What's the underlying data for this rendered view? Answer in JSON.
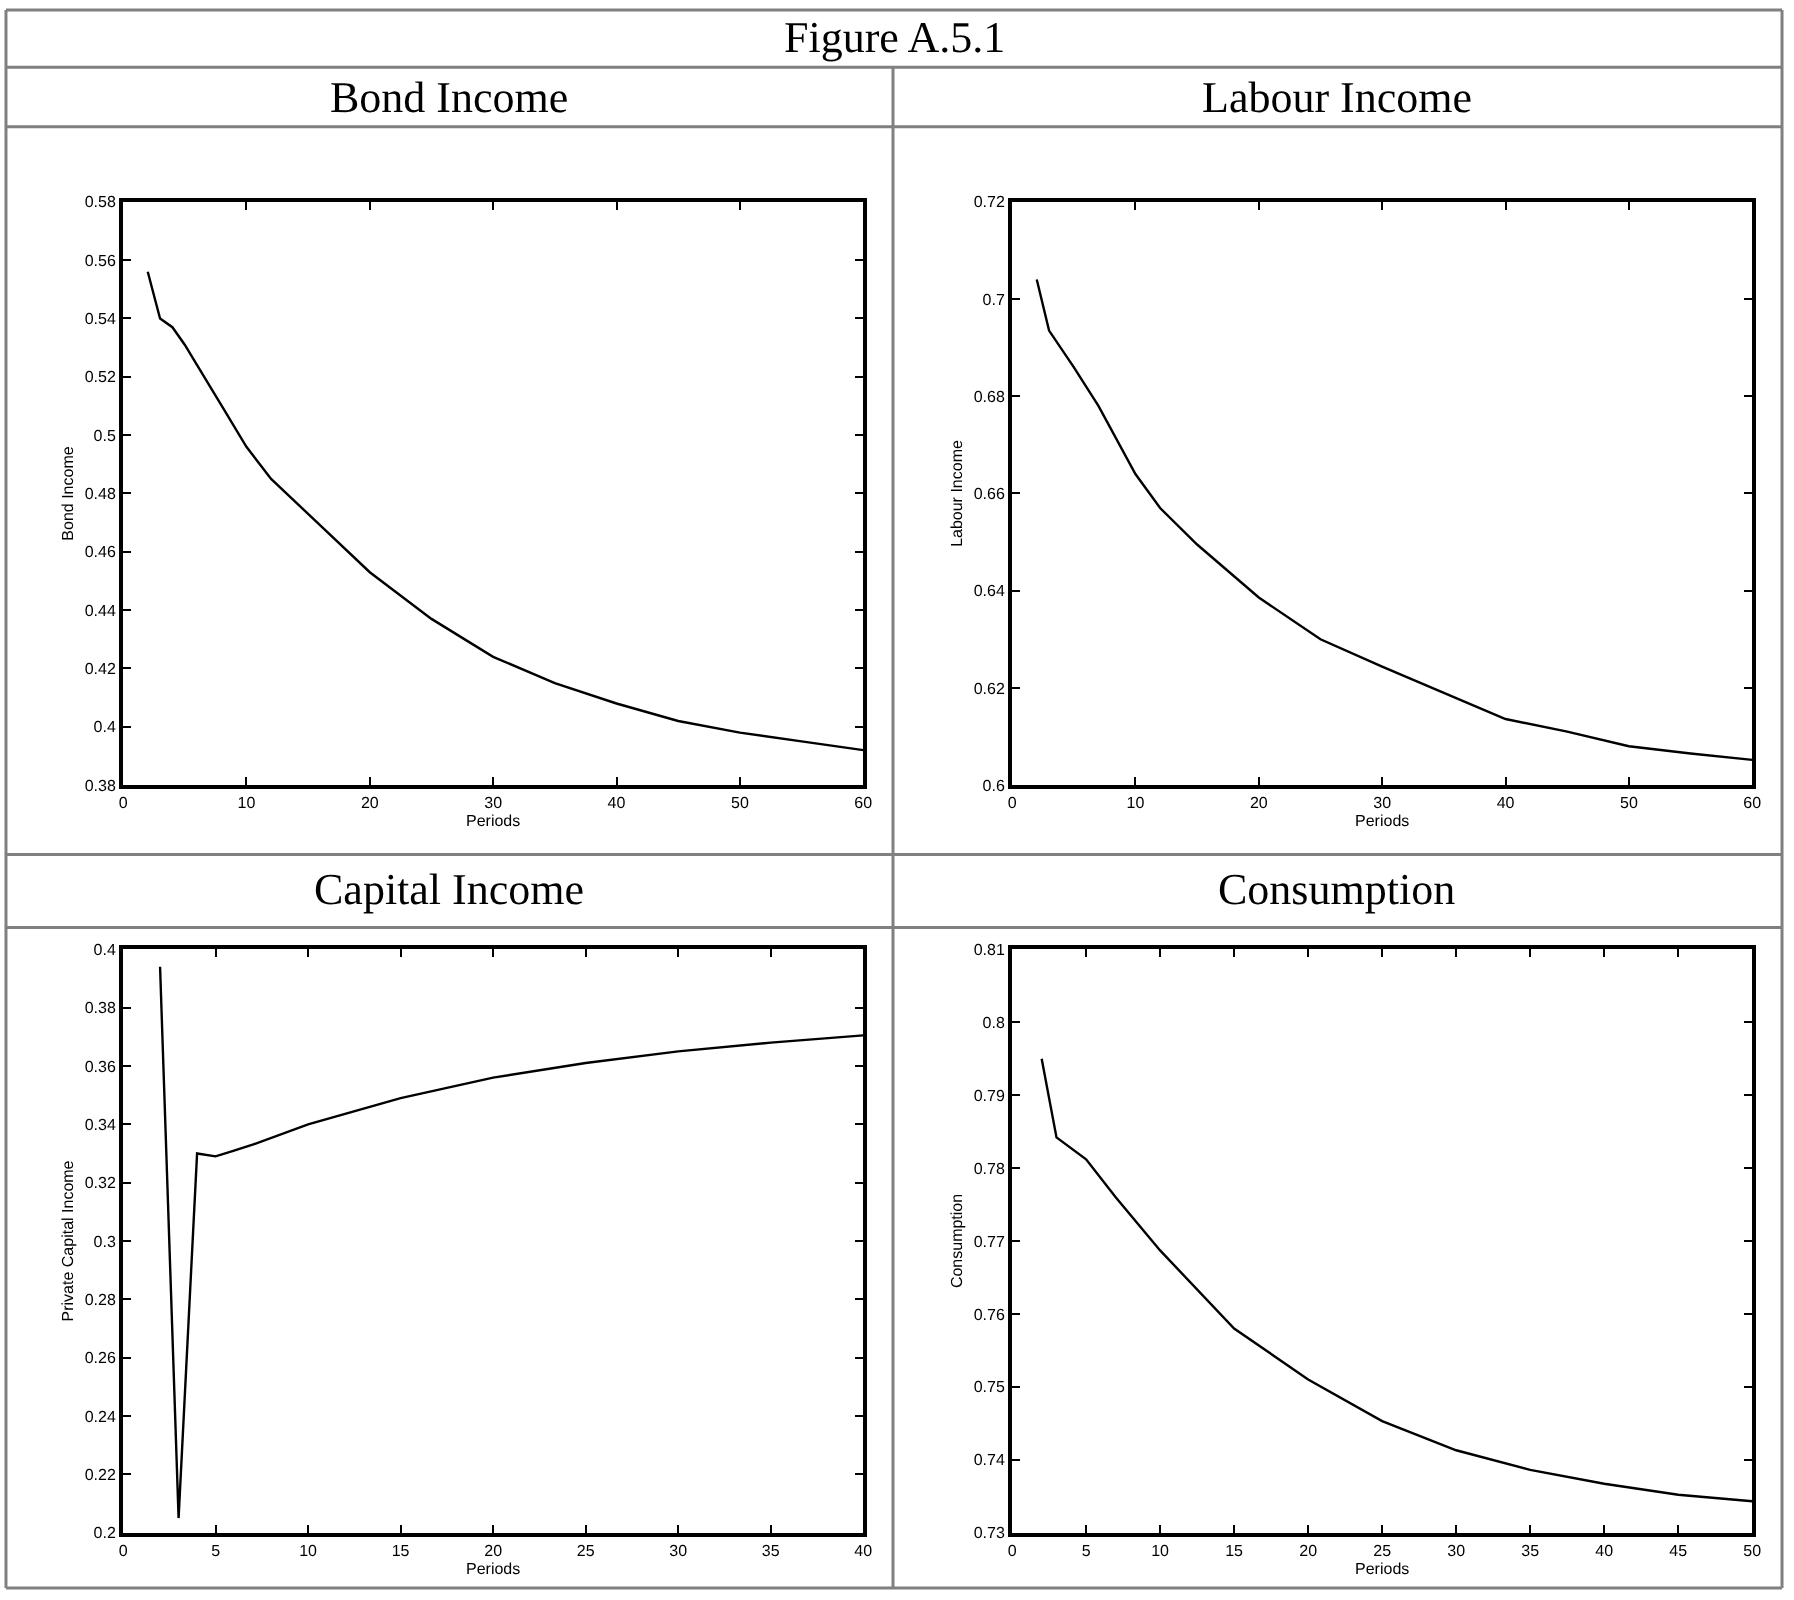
{
  "chart_data": [
    {
      "type": "other",
      "title": "Figure A.5.1"
    },
    {
      "type": "line",
      "title": "Bond Income",
      "xlabel": "Periods",
      "ylabel": "Bond Income",
      "color": "#000000",
      "x": [
        2,
        3,
        4,
        5,
        6,
        8,
        10,
        12,
        15,
        20,
        25,
        30,
        35,
        40,
        45,
        50,
        55,
        60
      ],
      "values": [
        0.556,
        0.54,
        0.537,
        0.531,
        0.524,
        0.51,
        0.496,
        0.485,
        0.473,
        0.453,
        0.437,
        0.424,
        0.415,
        0.408,
        0.402,
        0.398,
        0.395,
        0.392
      ],
      "xlim": [
        0,
        60
      ],
      "xticks": [
        0,
        10,
        20,
        30,
        40,
        50,
        60
      ],
      "ylim": [
        0.38,
        0.58
      ],
      "yticks": [
        0.38,
        0.4,
        0.42,
        0.44,
        0.46,
        0.48,
        0.5,
        0.52,
        0.54,
        0.56,
        0.58
      ]
    },
    {
      "type": "line",
      "title": "Labour Income",
      "xlabel": "Periods",
      "ylabel": "Labour Income",
      "color": "#000000",
      "x": [
        2,
        3,
        5,
        7,
        10,
        12,
        15,
        20,
        25,
        30,
        35,
        40,
        45,
        50,
        55,
        60
      ],
      "values": [
        0.704,
        0.6935,
        0.686,
        0.678,
        0.664,
        0.657,
        0.6495,
        0.6386,
        0.63,
        0.6244,
        0.619,
        0.6136,
        0.611,
        0.608,
        0.6065,
        0.6052
      ],
      "xlim": [
        0,
        60
      ],
      "xticks": [
        0,
        10,
        20,
        30,
        40,
        50,
        60
      ],
      "ylim": [
        0.6,
        0.72
      ],
      "yticks": [
        0.6,
        0.62,
        0.64,
        0.66,
        0.68,
        0.7,
        0.72
      ]
    },
    {
      "type": "line",
      "title": "Capital Income",
      "xlabel": "Periods",
      "ylabel": "Private Capital Income",
      "color": "#000000",
      "x": [
        2,
        3,
        4,
        5,
        6,
        7,
        10,
        15,
        20,
        25,
        30,
        35,
        40
      ],
      "values": [
        0.394,
        0.205,
        0.33,
        0.329,
        0.331,
        0.333,
        0.34,
        0.349,
        0.356,
        0.361,
        0.365,
        0.368,
        0.3705
      ],
      "xlim": [
        0,
        40
      ],
      "xticks": [
        0,
        5,
        10,
        15,
        20,
        25,
        30,
        35,
        40
      ],
      "ylim": [
        0.2,
        0.4
      ],
      "yticks": [
        0.2,
        0.22,
        0.24,
        0.26,
        0.28,
        0.3,
        0.32,
        0.34,
        0.36,
        0.38,
        0.4
      ]
    },
    {
      "type": "line",
      "title": "Consumption",
      "xlabel": "Periods",
      "ylabel": "Consumption",
      "color": "#000000",
      "x": [
        2,
        3,
        5,
        7,
        10,
        15,
        20,
        25,
        30,
        35,
        40,
        45,
        50
      ],
      "values": [
        0.795,
        0.7842,
        0.7812,
        0.776,
        0.7687,
        0.758,
        0.751,
        0.7453,
        0.7413,
        0.7386,
        0.7367,
        0.7352,
        0.7343
      ],
      "xlim": [
        0,
        50
      ],
      "xticks": [
        0,
        5,
        10,
        15,
        20,
        25,
        30,
        35,
        40,
        45,
        50
      ],
      "ylim": [
        0.73,
        0.81
      ],
      "yticks": [
        0.73,
        0.74,
        0.75,
        0.76,
        0.77,
        0.78,
        0.79,
        0.8,
        0.81
      ]
    }
  ]
}
